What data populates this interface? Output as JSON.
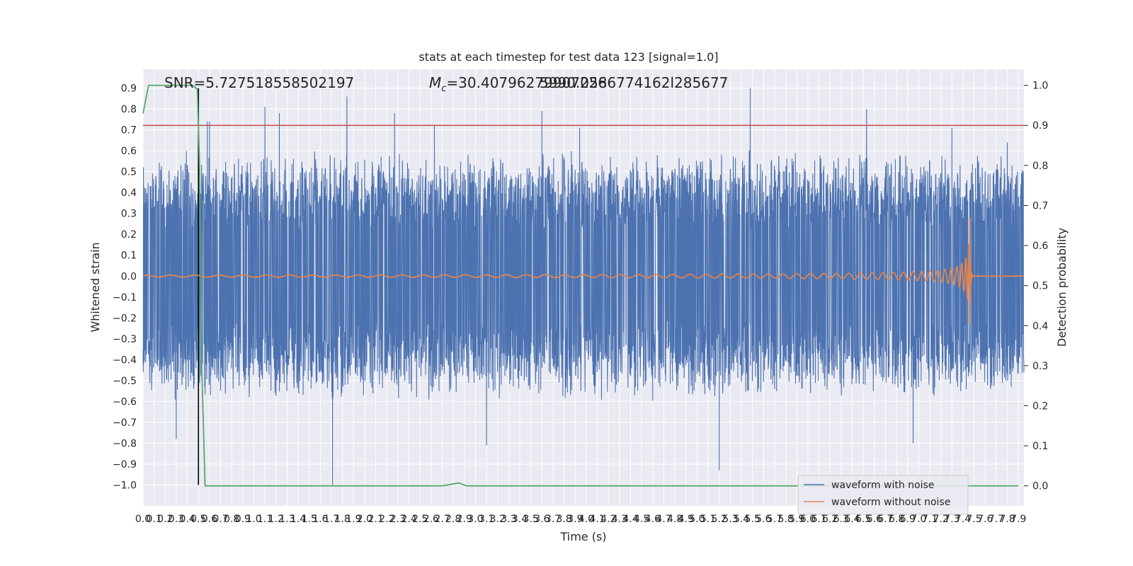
{
  "chart_data": {
    "type": "line",
    "title": "stats at each timestep for test data 123 [signal=1.0]",
    "xlabel": "Time (s)",
    "ylabel_left": "Whitened strain",
    "ylabel_right": "Detection probability",
    "xlim": [
      0.0,
      7.95
    ],
    "ylim_left": [
      -1.1,
      0.99
    ],
    "ylim_right": [
      -0.05,
      1.04
    ],
    "x_ticks": [
      "0.0",
      "0.1",
      "0.2",
      "0.3",
      "0.4",
      "0.5",
      "0.6",
      "0.7",
      "0.8",
      "0.9",
      "1.0",
      "1.1",
      "1.2",
      "1.3",
      "1.4",
      "1.5",
      "1.6",
      "1.7",
      "1.8",
      "1.9",
      "2.0",
      "2.1",
      "2.2",
      "2.3",
      "2.4",
      "2.5",
      "2.6",
      "2.7",
      "2.8",
      "2.9",
      "3.0",
      "3.1",
      "3.2",
      "3.3",
      "3.4",
      "3.5",
      "3.6",
      "3.7",
      "3.8",
      "3.9",
      "4.0",
      "4.1",
      "4.2",
      "4.3",
      "4.4",
      "4.5",
      "4.6",
      "4.7",
      "4.8",
      "4.9",
      "5.0",
      "5.1",
      "5.2",
      "5.3",
      "5.4",
      "5.5",
      "5.6",
      "5.7",
      "5.8",
      "5.9",
      "6.0",
      "6.1",
      "6.2",
      "6.3",
      "6.4",
      "6.5",
      "6.6",
      "6.7",
      "6.8",
      "6.9",
      "7.0",
      "7.1",
      "7.2",
      "7.3",
      "7.4",
      "7.5",
      "7.6",
      "7.7",
      "7.8",
      "7.9"
    ],
    "y_ticks_left": [
      "0.9",
      "0.8",
      "0.7",
      "0.6",
      "0.5",
      "0.4",
      "0.3",
      "0.2",
      "0.1",
      "0.0",
      "−0.1",
      "−0.2",
      "−0.3",
      "−0.4",
      "−0.5",
      "−0.6",
      "−0.7",
      "−0.8",
      "−0.9",
      "−1.0"
    ],
    "y_ticks_right": [
      "1.0",
      "0.9",
      "0.8",
      "0.7",
      "0.6",
      "0.5",
      "0.4",
      "0.3",
      "0.2",
      "0.1",
      "0.0"
    ],
    "annotations": {
      "snr": "SNR=5.727518558502197",
      "mc_prefix": "M",
      "mc_sub": "c",
      "mc_value": "=30.40796279907226",
      "overlap_text": "5990.0586774162l285677"
    },
    "series": [
      {
        "name": "waveform with noise",
        "color": "#4c72b0",
        "axis": "left",
        "envelope_typical": [
          -0.42,
          0.42
        ],
        "spikes": [
          {
            "x": 0.5,
            "y": 0.6
          },
          {
            "x": 0.58,
            "y": 0.74
          },
          {
            "x": 0.6,
            "y": 0.74
          },
          {
            "x": 0.3,
            "y": -0.78
          },
          {
            "x": 1.1,
            "y": 0.81
          },
          {
            "x": 1.23,
            "y": 0.78
          },
          {
            "x": 1.84,
            "y": 0.86
          },
          {
            "x": 2.27,
            "y": 0.78
          },
          {
            "x": 2.63,
            "y": 0.72
          },
          {
            "x": 1.71,
            "y": -1.0
          },
          {
            "x": 3.1,
            "y": -0.81
          },
          {
            "x": 3.6,
            "y": 0.79
          },
          {
            "x": 3.94,
            "y": 0.71
          },
          {
            "x": 5.48,
            "y": 0.9
          },
          {
            "x": 5.2,
            "y": -0.93
          },
          {
            "x": 6.53,
            "y": 0.8
          },
          {
            "x": 6.95,
            "y": -0.8
          },
          {
            "x": 7.3,
            "y": 0.71
          },
          {
            "x": 7.8,
            "y": 0.64
          }
        ]
      },
      {
        "name": "waveform without noise",
        "color": "#dd8452",
        "axis": "left",
        "chirp": {
          "t_merger": 7.46,
          "peak_amplitude": 0.3
        }
      },
      {
        "name": "detection probability",
        "color": "#55a868",
        "axis": "right",
        "points": [
          {
            "x": 0.0,
            "y": 0.93
          },
          {
            "x": 0.05,
            "y": 1.0
          },
          {
            "x": 0.1,
            "y": 1.0
          },
          {
            "x": 0.45,
            "y": 1.0
          },
          {
            "x": 0.49,
            "y": 0.99
          },
          {
            "x": 0.51,
            "y": 0.8
          },
          {
            "x": 0.53,
            "y": 0.3
          },
          {
            "x": 0.56,
            "y": 0.0
          },
          {
            "x": 2.7,
            "y": 0.0
          },
          {
            "x": 2.85,
            "y": 0.007
          },
          {
            "x": 2.92,
            "y": 0.0
          },
          {
            "x": 7.9,
            "y": 0.0
          }
        ]
      }
    ],
    "reference_lines": [
      {
        "type": "horizontal",
        "axis": "right",
        "y": 0.9,
        "color": "#c44e52"
      },
      {
        "type": "vertical",
        "x": 0.5,
        "color": "#000000"
      }
    ],
    "legend": {
      "placement": "lower-right",
      "entries": [
        {
          "label": "waveform with noise",
          "color": "#4c72b0"
        },
        {
          "label": "waveform without noise",
          "color": "#dd8452"
        }
      ]
    },
    "grid": true,
    "background": "#eaeaf2"
  }
}
